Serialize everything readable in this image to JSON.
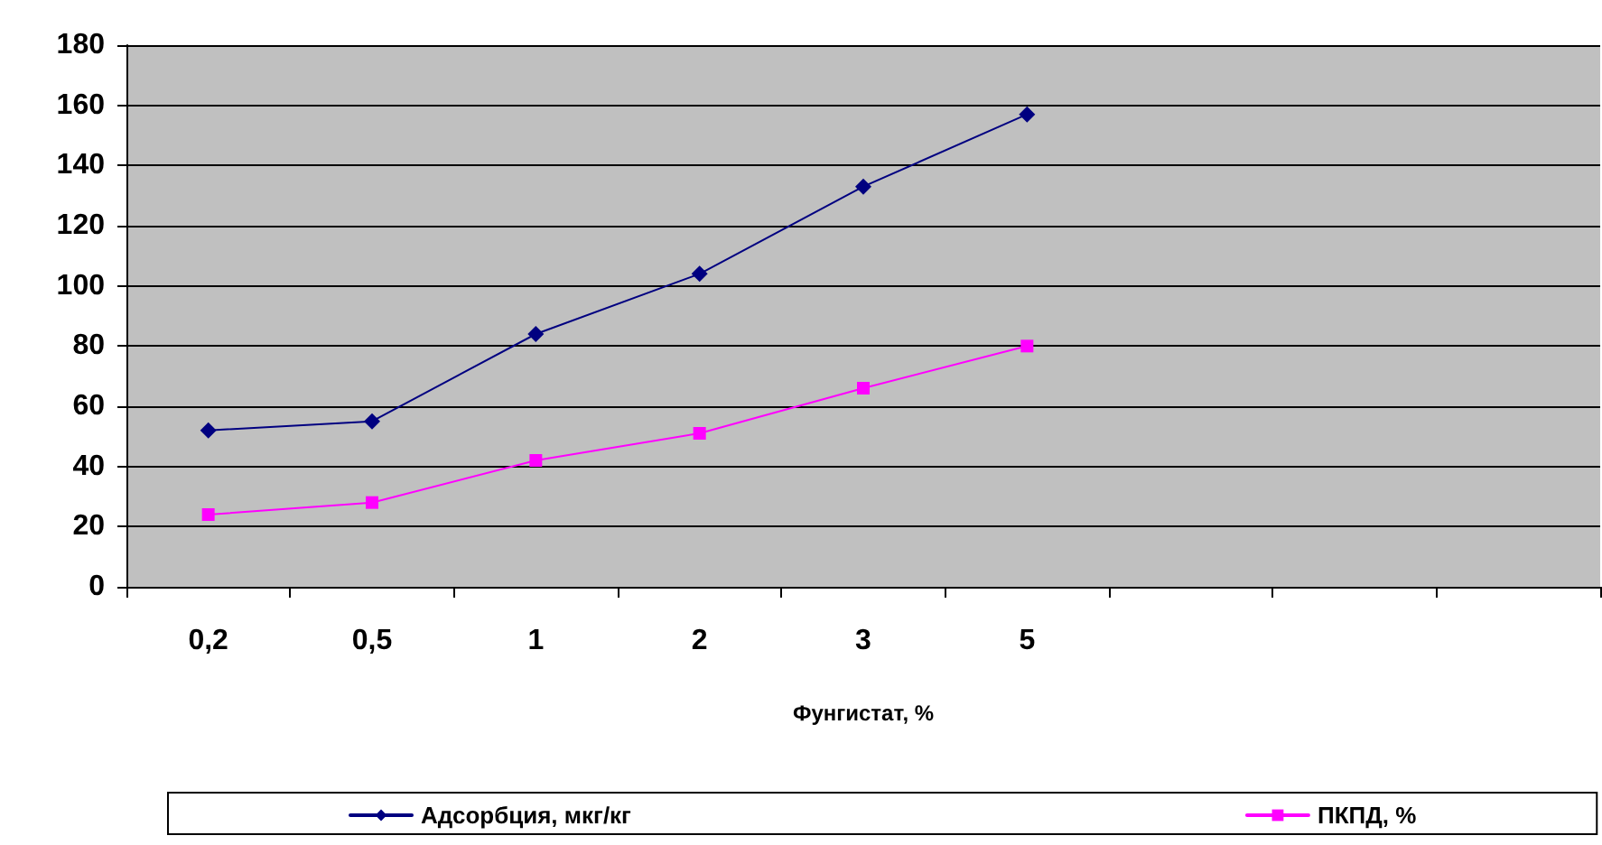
{
  "chart_data": {
    "type": "line",
    "xlabel": "Фунгистат, %",
    "categories": [
      "0,2",
      "0,5",
      "1",
      "2",
      "3",
      "5",
      null,
      null,
      null
    ],
    "series": [
      {
        "name": "Адсорбция, мкг/кг",
        "color": "#000080",
        "marker": "diamond",
        "values": [
          52,
          55,
          84,
          104,
          133,
          157,
          null,
          null,
          null
        ]
      },
      {
        "name": "ПКПД, %",
        "color": "#ff00ff",
        "marker": "square",
        "values": [
          24,
          28,
          42,
          51,
          66,
          80,
          null,
          null,
          null
        ]
      }
    ],
    "ylim": [
      0,
      180
    ],
    "yticks": [
      0,
      20,
      40,
      60,
      80,
      100,
      120,
      140,
      160,
      180
    ],
    "grid": "y",
    "legend": "bottom",
    "line_style": "solid"
  }
}
